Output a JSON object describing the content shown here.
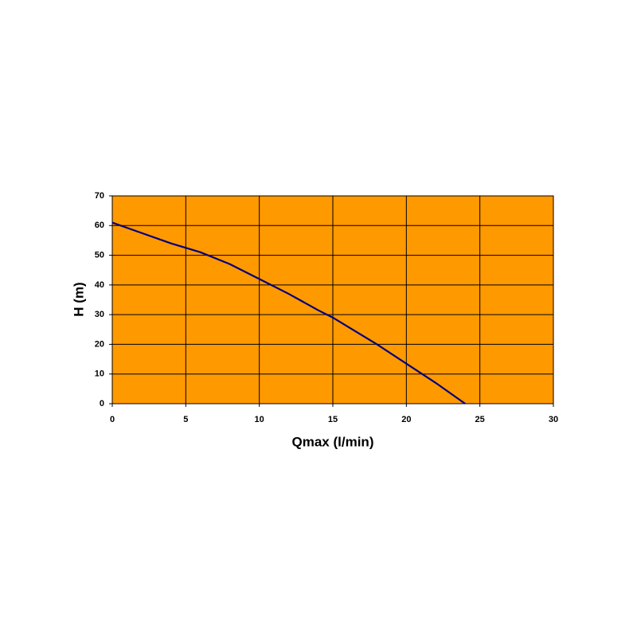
{
  "chart_data": {
    "type": "line",
    "x_label": "Qmax (l/min)",
    "y_label": "H (m)",
    "x": [
      0,
      2,
      4,
      6,
      8,
      10,
      12,
      14,
      15,
      16,
      18,
      20,
      22,
      24
    ],
    "series": [
      {
        "name": "H",
        "color": "#000080",
        "values": [
          61,
          57.5,
          54,
          51,
          47,
          42,
          37,
          31.5,
          29,
          26,
          20,
          13.5,
          7,
          0
        ]
      }
    ],
    "xlim": [
      0,
      30
    ],
    "xticks": [
      0,
      5,
      10,
      15,
      20,
      25,
      30
    ],
    "ylim": [
      0,
      70
    ],
    "yticks": [
      0,
      10,
      20,
      30,
      40,
      50,
      60,
      70
    ],
    "grid": true,
    "plot_background": "#ff9900"
  }
}
